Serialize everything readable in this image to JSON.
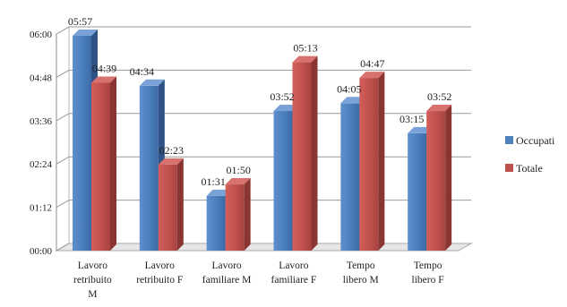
{
  "chart_data": {
    "type": "bar",
    "title": "",
    "xlabel": "",
    "ylabel": "",
    "categories": [
      [
        "Lavoro",
        "retribuito",
        "M"
      ],
      [
        "Lavoro",
        "retribuito F"
      ],
      [
        "Lavoro",
        "familiare M"
      ],
      [
        "Lavoro",
        "familiare F"
      ],
      [
        "Tempo",
        "libero M"
      ],
      [
        "Tempo",
        "libero F"
      ]
    ],
    "series": [
      {
        "name": "Occupati",
        "color": "#4f81bd",
        "values": [
          "05:57",
          "04:34",
          "01:31",
          "03:52",
          "04:05",
          "03:15"
        ]
      },
      {
        "name": "Totale",
        "color": "#c0504d",
        "values": [
          "04:39",
          "02:23",
          "01:50",
          "05:13",
          "04:47",
          "03:52"
        ]
      }
    ],
    "yticks": [
      "00:00",
      "01:12",
      "02:24",
      "03:36",
      "04:48",
      "06:00"
    ],
    "ylim": [
      "00:00",
      "06:00"
    ],
    "grid": true,
    "legend_position": "right"
  }
}
